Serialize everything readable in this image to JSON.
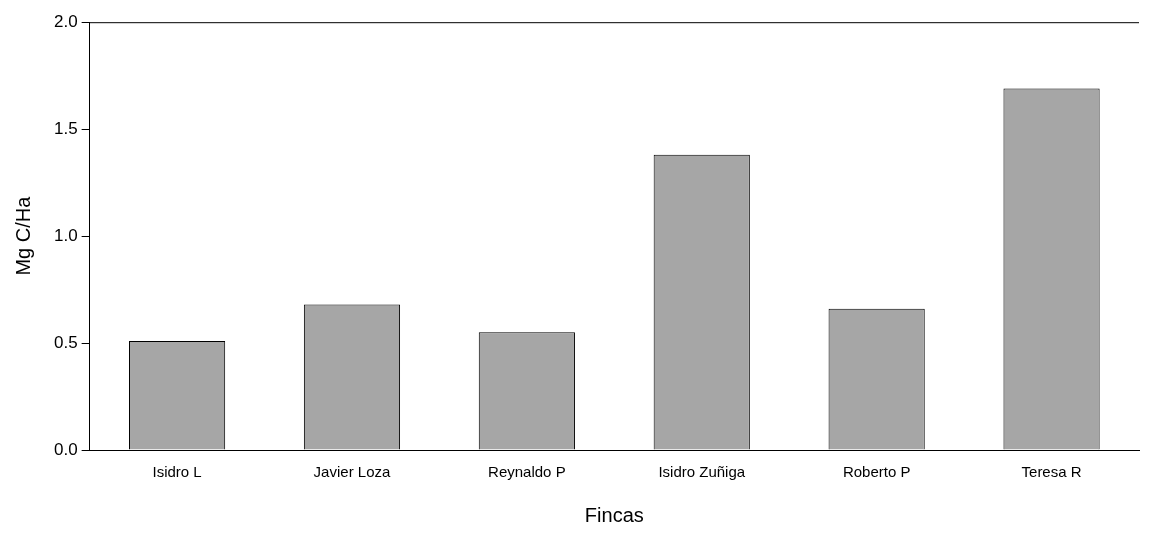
{
  "chart_data": {
    "type": "bar",
    "xlabel": "Fincas",
    "ylabel": "Mg C/Ha",
    "categories": [
      "Isidro L",
      "Javier Loza",
      "Reynaldo P",
      "Isidro Zuñiga",
      "Roberto P",
      "Teresa R"
    ],
    "values": [
      0.51,
      0.68,
      0.55,
      1.38,
      0.66,
      1.69
    ],
    "color": "#a6a6a6",
    "ylim": [
      0,
      2.0
    ],
    "yticks": [
      {
        "value": 0,
        "label": "0.0"
      },
      {
        "value": 0.5,
        "label": "0.5"
      },
      {
        "value": 1,
        "label": "1.0"
      },
      {
        "value": 1.5,
        "label": "1.5"
      },
      {
        "value": 2,
        "label": "2.0"
      }
    ],
    "grid": false,
    "legend": false
  }
}
